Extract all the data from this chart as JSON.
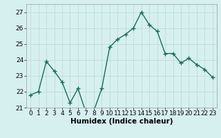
{
  "x": [
    0,
    1,
    2,
    3,
    4,
    5,
    6,
    7,
    8,
    9,
    10,
    11,
    12,
    13,
    14,
    15,
    16,
    17,
    18,
    19,
    20,
    21,
    22,
    23
  ],
  "y": [
    21.8,
    22.0,
    23.9,
    23.3,
    22.6,
    21.3,
    22.2,
    20.7,
    20.8,
    22.2,
    24.8,
    25.3,
    25.6,
    26.0,
    27.0,
    26.2,
    25.8,
    24.4,
    24.4,
    23.8,
    24.1,
    23.7,
    23.4,
    22.9
  ],
  "line_color": "#1a6b5a",
  "marker": "+",
  "marker_size": 4,
  "marker_linewidth": 1.0,
  "bg_color": "#d6f0ef",
  "grid_color": "#b8d8d4",
  "xlabel": "Humidex (Indice chaleur)",
  "xlim": [
    -0.5,
    23.5
  ],
  "ylim": [
    21.0,
    27.5
  ],
  "yticks": [
    21,
    22,
    23,
    24,
    25,
    26,
    27
  ],
  "xticks": [
    0,
    1,
    2,
    3,
    4,
    5,
    6,
    7,
    8,
    9,
    10,
    11,
    12,
    13,
    14,
    15,
    16,
    17,
    18,
    19,
    20,
    21,
    22,
    23
  ],
  "xlabel_fontsize": 7.5,
  "tick_fontsize": 6.5,
  "linewidth": 1.0
}
